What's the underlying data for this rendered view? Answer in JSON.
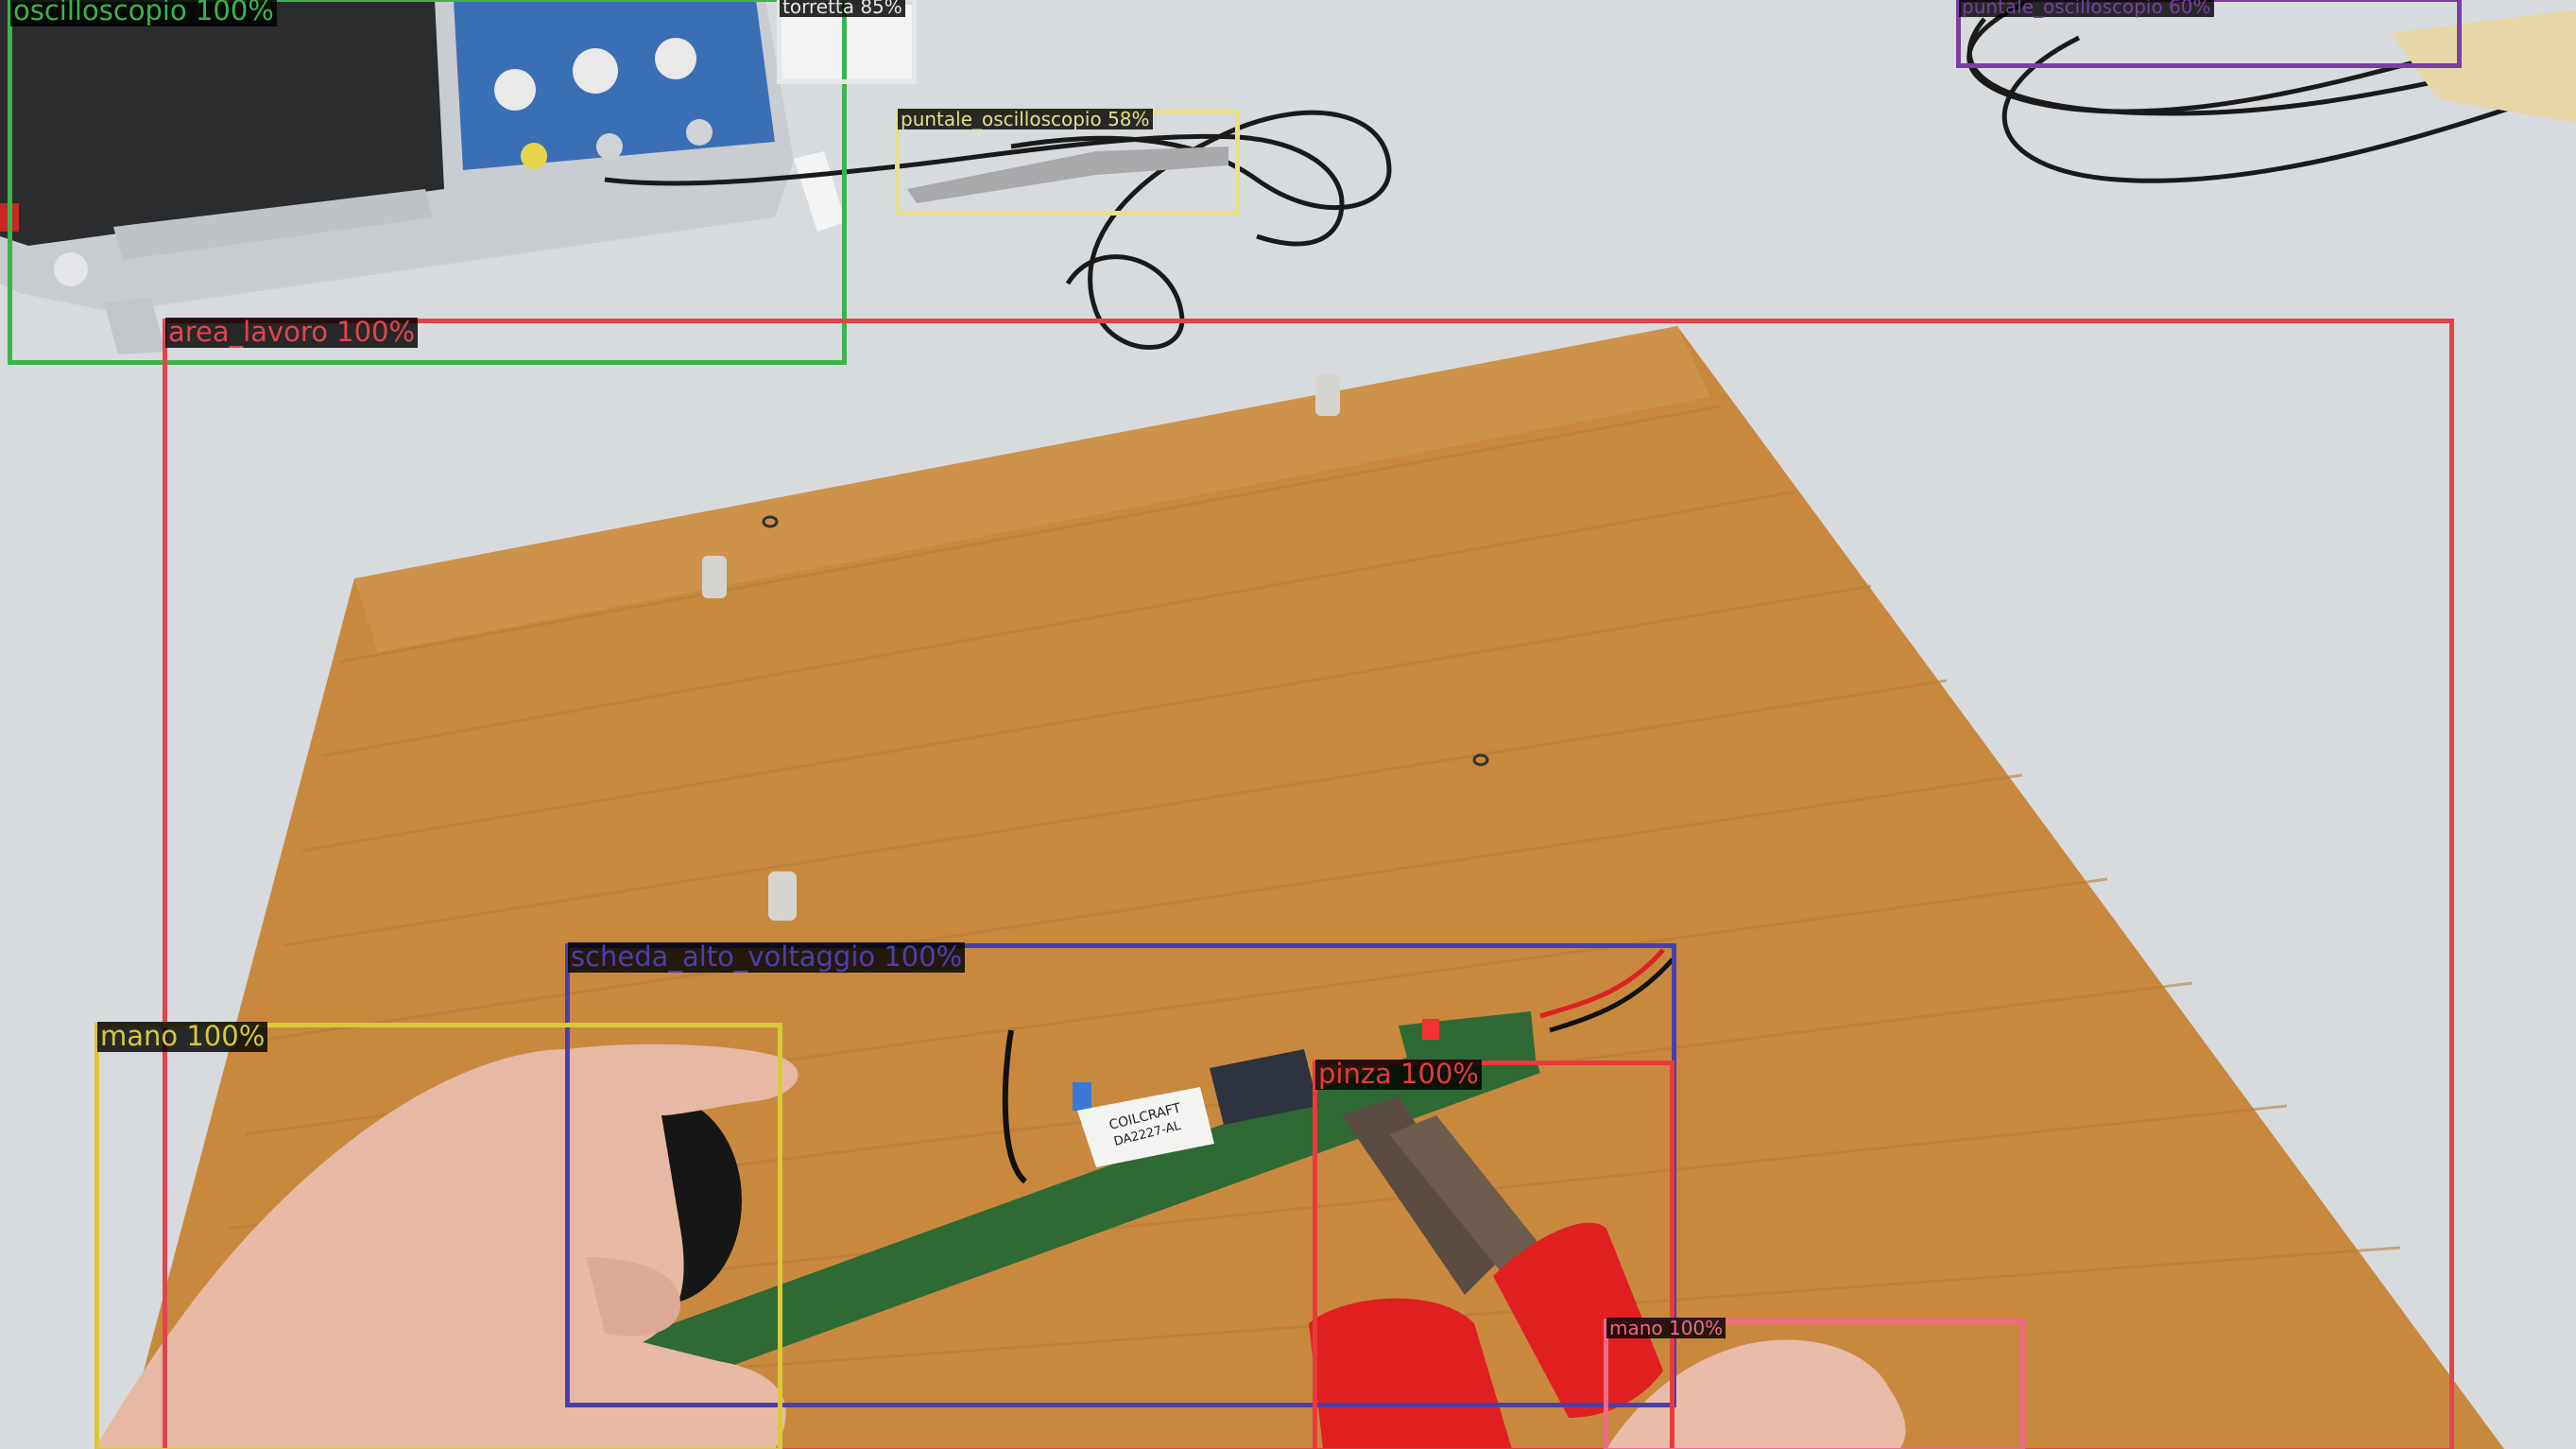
{
  "detections": [
    {
      "id": "oscilloscopio",
      "label": "oscilloscopio 100%",
      "color": "#3cb44b"
    },
    {
      "id": "torretta",
      "label": "torretta 85%",
      "color": "#e6e6e6"
    },
    {
      "id": "puntale-1",
      "label": "puntale_oscilloscopio 58%",
      "color": "#e6e08a"
    },
    {
      "id": "puntale-2",
      "label": "puntale_oscilloscopio 60%",
      "color": "#7a3fa0"
    },
    {
      "id": "area-lavoro",
      "label": "area_lavoro 100%",
      "color": "#e0454f"
    },
    {
      "id": "scheda",
      "label": "scheda_alto_voltaggio 100%",
      "color": "#4a3fb0"
    },
    {
      "id": "mano-sx",
      "label": "mano 100%",
      "color": "#d9c83a"
    },
    {
      "id": "pinza",
      "label": "pinza 100%",
      "color": "#e83a3a"
    },
    {
      "id": "mano-dx",
      "label": "mano 100%",
      "color": "#f06a86"
    }
  ],
  "component_label": {
    "line1": "COILCRAFT",
    "line2": "DA2227-AL"
  }
}
